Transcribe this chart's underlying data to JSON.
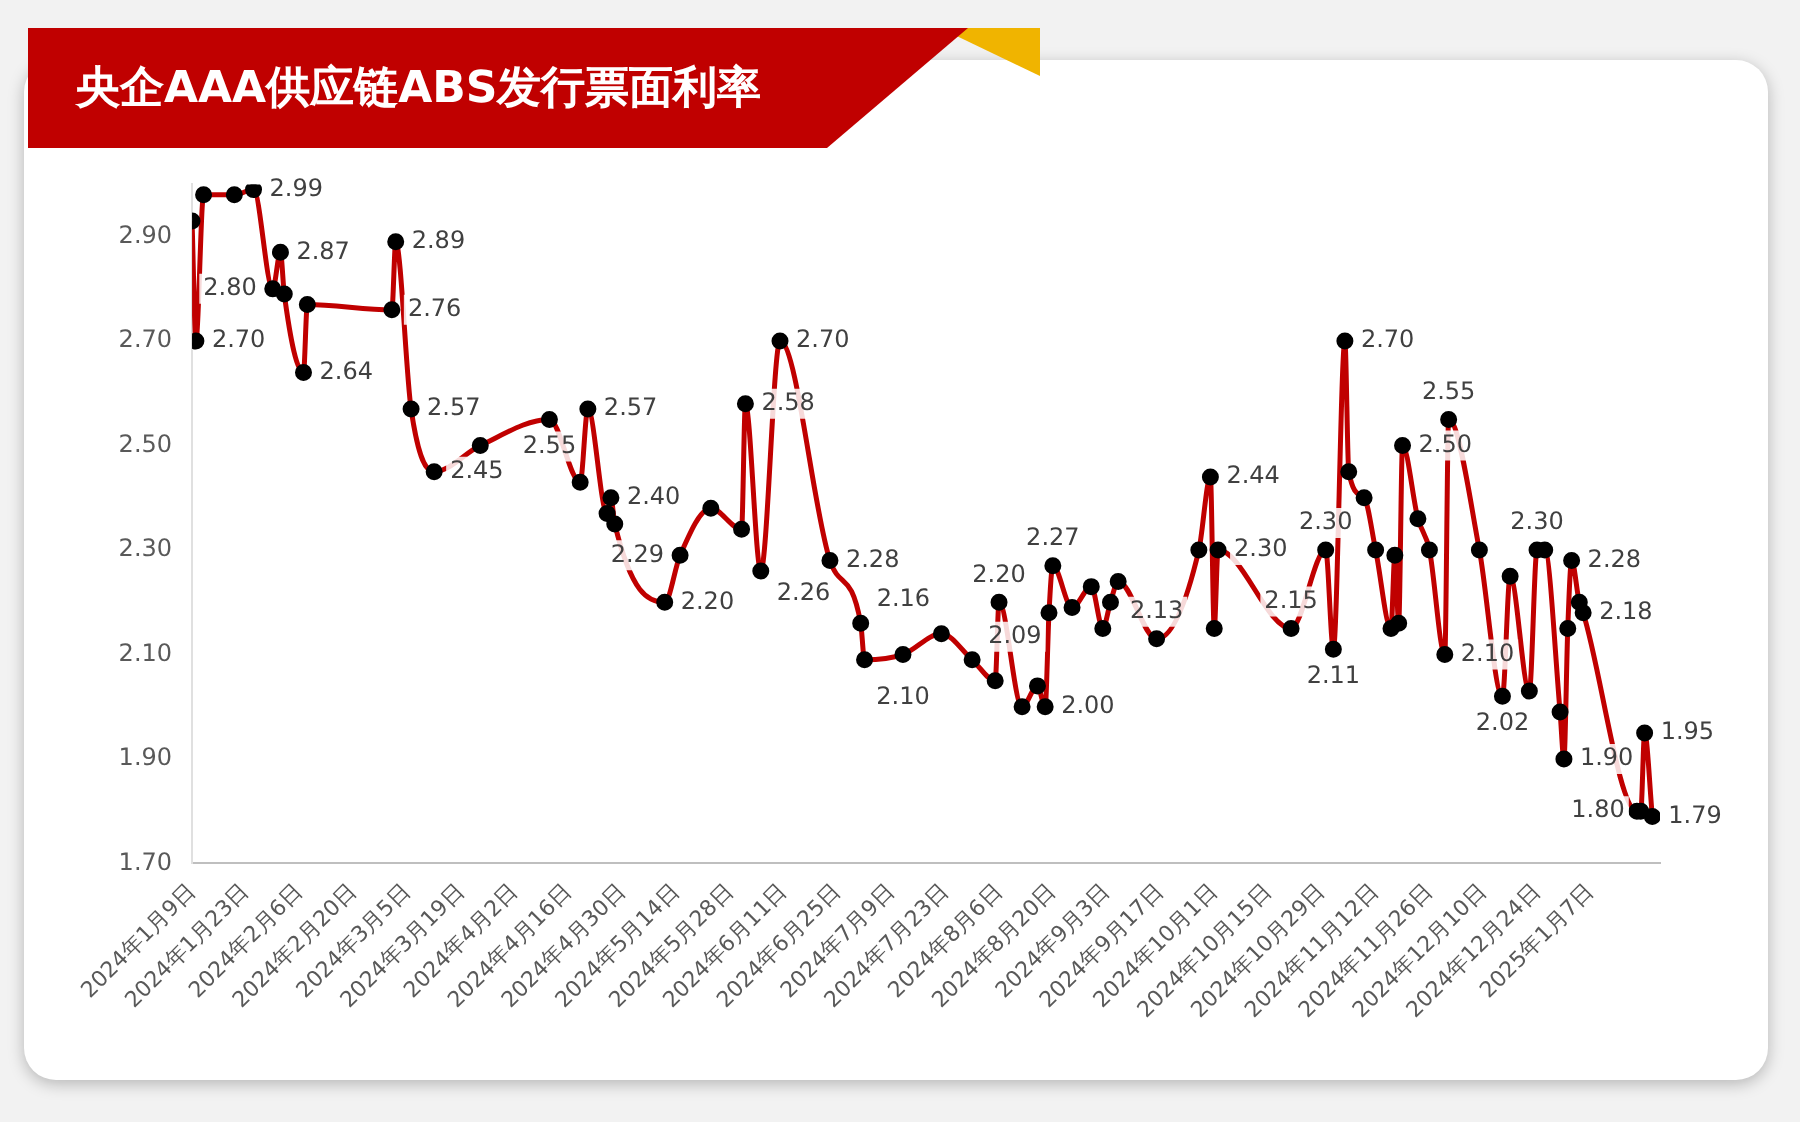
{
  "chart_data": {
    "type": "line",
    "title": "央企AAA供应链ABS发行票面利率",
    "x": [
      "2024-01-09",
      "2024-01-10",
      "2024-01-12",
      "2024-01-20",
      "2024-01-25",
      "2024-01-30",
      "2024-02-01",
      "2024-02-02",
      "2024-02-07",
      "2024-02-08",
      "2024-03-01",
      "2024-03-02",
      "2024-03-06",
      "2024-03-12",
      "2024-03-24",
      "2024-04-11",
      "2024-04-19",
      "2024-04-21",
      "2024-04-26",
      "2024-04-27",
      "2024-04-28",
      "2024-05-11",
      "2024-05-15",
      "2024-05-23",
      "2024-05-31",
      "2024-06-01",
      "2024-06-05",
      "2024-06-10",
      "2024-06-23",
      "2024-07-01",
      "2024-07-02",
      "2024-07-12",
      "2024-07-22",
      "2024-07-30",
      "2024-08-05",
      "2024-08-06",
      "2024-08-12",
      "2024-08-16",
      "2024-08-18",
      "2024-08-19",
      "2024-08-20",
      "2024-08-25",
      "2024-08-30",
      "2024-09-02",
      "2024-09-04",
      "2024-09-06",
      "2024-09-16",
      "2024-09-27",
      "2024-09-30",
      "2024-10-01",
      "2024-10-02",
      "2024-10-21",
      "2024-10-30",
      "2024-11-01",
      "2024-11-04",
      "2024-11-05",
      "2024-11-09",
      "2024-11-12",
      "2024-11-16",
      "2024-11-17",
      "2024-11-18",
      "2024-11-19",
      "2024-11-23",
      "2024-11-26",
      "2024-11-30",
      "2024-12-01",
      "2024-12-09",
      "2024-12-15",
      "2024-12-17",
      "2024-12-22",
      "2024-12-24",
      "2024-12-26",
      "2024-12-30",
      "2024-12-31",
      "2025-01-01",
      "2025-01-02",
      "2025-01-04",
      "2025-01-05",
      "2025-01-19",
      "2025-01-20",
      "2025-01-21",
      "2025-01-23"
    ],
    "series": [
      {
        "color": "#c00000",
        "values": [
          2.93,
          2.7,
          2.98,
          2.98,
          2.99,
          2.8,
          2.87,
          2.79,
          2.64,
          2.77,
          2.76,
          2.89,
          2.57,
          2.45,
          2.5,
          2.55,
          2.43,
          2.57,
          2.37,
          2.4,
          2.35,
          2.2,
          2.29,
          2.38,
          2.34,
          2.58,
          2.26,
          2.7,
          2.28,
          2.16,
          2.09,
          2.1,
          2.14,
          2.09,
          2.05,
          2.2,
          2.0,
          2.04,
          2.0,
          2.18,
          2.27,
          2.19,
          2.23,
          2.15,
          2.2,
          2.24,
          2.13,
          2.3,
          2.44,
          2.15,
          2.3,
          2.15,
          2.3,
          2.11,
          2.7,
          2.45,
          2.4,
          2.3,
          2.15,
          2.29,
          2.16,
          2.5,
          2.36,
          2.3,
          2.1,
          2.55,
          2.3,
          2.02,
          2.25,
          2.03,
          2.3,
          2.3,
          1.99,
          1.9,
          2.15,
          2.28,
          2.2,
          2.18,
          1.8,
          1.8,
          1.95,
          1.79
        ],
        "value_labels": [
          null,
          "2.70",
          null,
          null,
          "2.99",
          "2.80",
          "2.87",
          null,
          "2.64",
          null,
          "2.76",
          "2.89",
          "2.57",
          "2.45",
          null,
          "2.55",
          null,
          "2.57",
          null,
          "2.40",
          null,
          "2.20",
          "2.29",
          null,
          null,
          "2.58",
          "2.26",
          "2.70",
          "2.28",
          "2.16",
          null,
          "2.10",
          null,
          "2.09",
          null,
          "2.20",
          null,
          null,
          "2.00",
          null,
          "2.27",
          null,
          null,
          null,
          null,
          null,
          "2.13",
          null,
          "2.44",
          null,
          "2.30",
          "2.15",
          "2.30",
          "2.11",
          "2.70",
          null,
          null,
          null,
          null,
          null,
          null,
          "2.50",
          null,
          null,
          "2.10",
          "2.55",
          null,
          "2.02",
          null,
          null,
          "2.30",
          null,
          null,
          "1.90",
          null,
          "2.28",
          null,
          "2.18",
          null,
          "1.80",
          "1.95",
          "1.79"
        ]
      }
    ],
    "xlim": [
      "2024-01-09",
      "2025-01-25"
    ],
    "xticks": [
      {
        "value": "2024-01-09",
        "label": "2024年1月9日"
      },
      {
        "value": "2024-01-23",
        "label": "2024年1月23日"
      },
      {
        "value": "2024-02-06",
        "label": "2024年2月6日"
      },
      {
        "value": "2024-02-20",
        "label": "2024年2月20日"
      },
      {
        "value": "2024-03-05",
        "label": "2024年3月5日"
      },
      {
        "value": "2024-03-19",
        "label": "2024年3月19日"
      },
      {
        "value": "2024-04-02",
        "label": "2024年4月2日"
      },
      {
        "value": "2024-04-16",
        "label": "2024年4月16日"
      },
      {
        "value": "2024-04-30",
        "label": "2024年4月30日"
      },
      {
        "value": "2024-05-14",
        "label": "2024年5月14日"
      },
      {
        "value": "2024-05-28",
        "label": "2024年5月28日"
      },
      {
        "value": "2024-06-11",
        "label": "2024年6月11日"
      },
      {
        "value": "2024-06-25",
        "label": "2024年6月25日"
      },
      {
        "value": "2024-07-09",
        "label": "2024年7月9日"
      },
      {
        "value": "2024-07-23",
        "label": "2024年7月23日"
      },
      {
        "value": "2024-08-06",
        "label": "2024年8月6日"
      },
      {
        "value": "2024-08-20",
        "label": "2024年8月20日"
      },
      {
        "value": "2024-09-03",
        "label": "2024年9月3日"
      },
      {
        "value": "2024-09-17",
        "label": "2024年9月17日"
      },
      {
        "value": "2024-10-01",
        "label": "2024年10月1日"
      },
      {
        "value": "2024-10-15",
        "label": "2024年10月15日"
      },
      {
        "value": "2024-10-29",
        "label": "2024年10月29日"
      },
      {
        "value": "2024-11-12",
        "label": "2024年11月12日"
      },
      {
        "value": "2024-11-26",
        "label": "2024年11月26日"
      },
      {
        "value": "2024-12-10",
        "label": "2024年12月10日"
      },
      {
        "value": "2024-12-24",
        "label": "2024年12月24日"
      },
      {
        "value": "2025-01-07",
        "label": "2025年1月7日"
      }
    ],
    "ylim": [
      1.7,
      3.0
    ],
    "yticks": [
      {
        "value": 1.7,
        "label": "1.70"
      },
      {
        "value": 1.9,
        "label": "1.90"
      },
      {
        "value": 2.1,
        "label": "2.10"
      },
      {
        "value": 2.3,
        "label": "2.30"
      },
      {
        "value": 2.5,
        "label": "2.50"
      },
      {
        "value": 2.7,
        "label": "2.70"
      },
      {
        "value": 2.9,
        "label": "2.90"
      }
    ],
    "marker": "circle",
    "line_style": "solid"
  }
}
